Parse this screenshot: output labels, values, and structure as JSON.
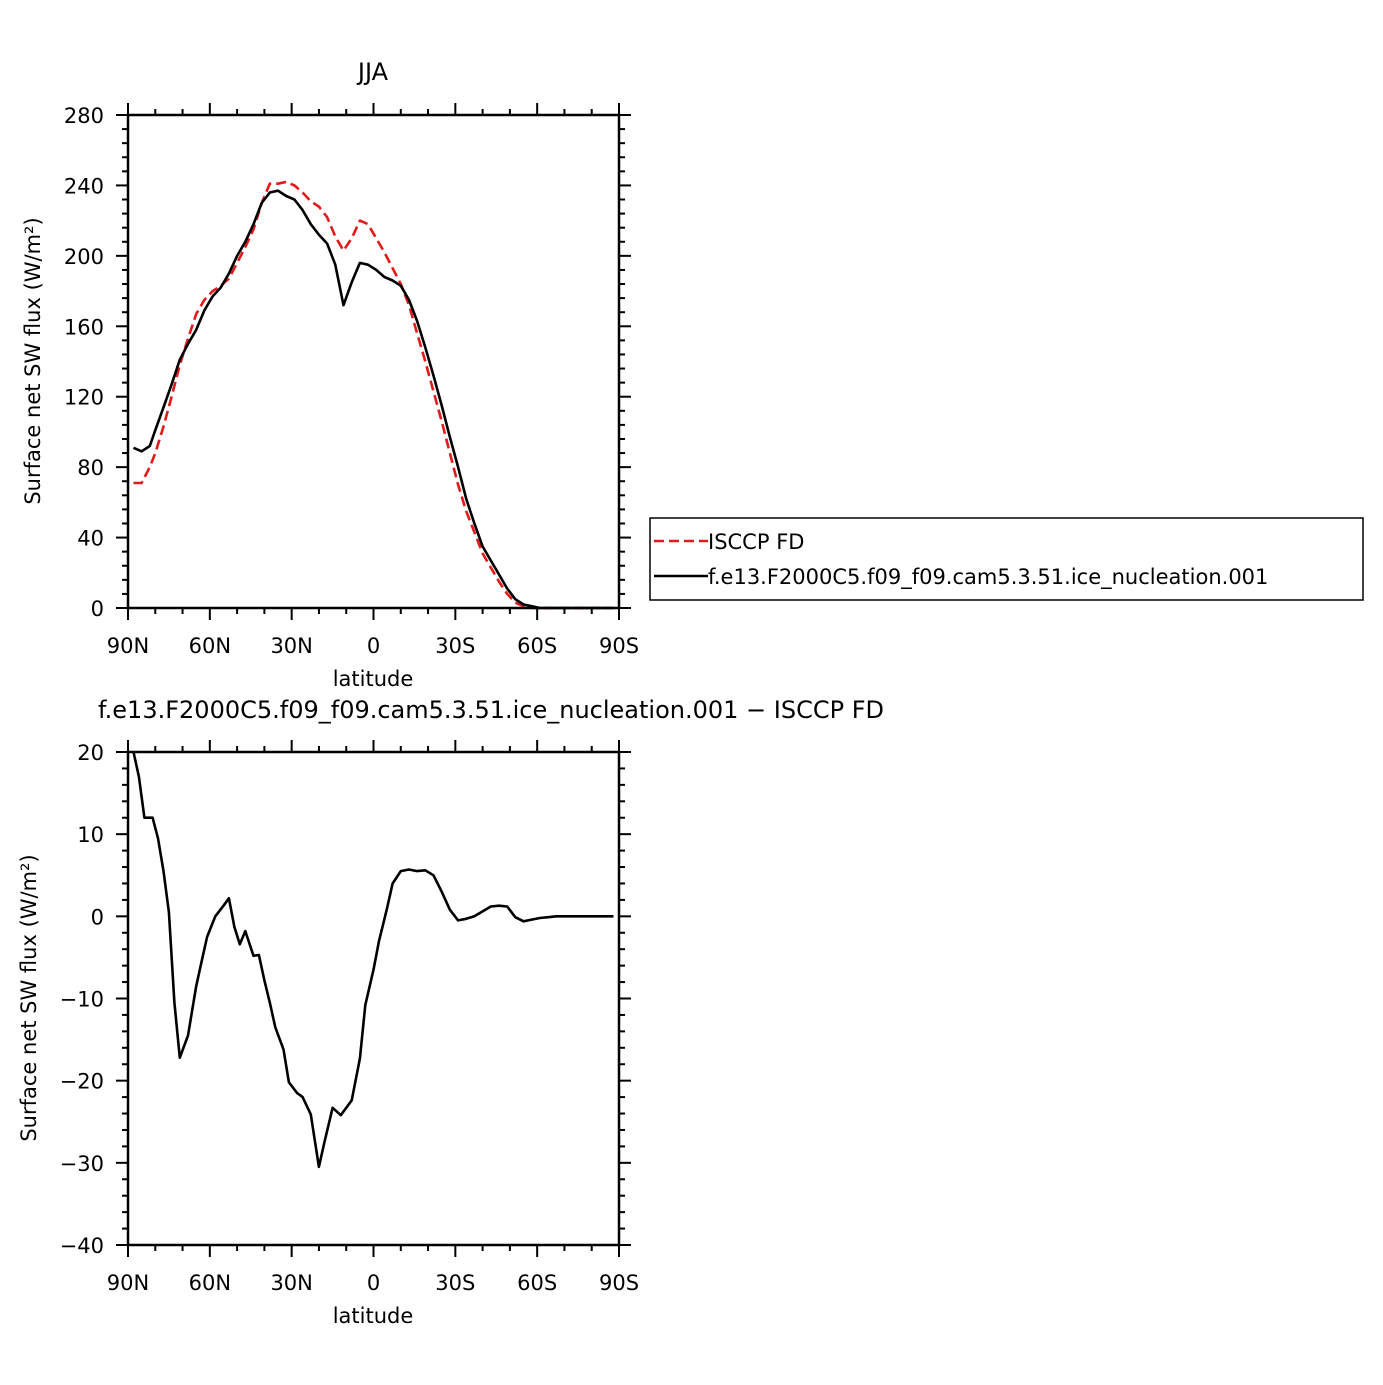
{
  "chart_data": [
    {
      "type": "line",
      "title": "JJA",
      "xlabel": "latitude",
      "ylabel": "Surface net SW flux (W/m²)",
      "xlim": [
        90,
        -90
      ],
      "ylim": [
        0,
        280
      ],
      "x_ticks": [
        90,
        60,
        30,
        0,
        -30,
        -60,
        -90
      ],
      "x_tick_labels": [
        "90N",
        "60N",
        "30N",
        "0",
        "30S",
        "60S",
        "90S"
      ],
      "y_ticks": [
        0,
        40,
        80,
        120,
        160,
        200,
        240,
        280
      ],
      "y_tick_labels": [
        "0",
        "40",
        "80",
        "120",
        "160",
        "200",
        "240",
        "280"
      ],
      "x": [
        88,
        85,
        82,
        80,
        77,
        74,
        71,
        68,
        65,
        62,
        59,
        56,
        53,
        50,
        47,
        44,
        41,
        38,
        35,
        32,
        29,
        26,
        23,
        20,
        17,
        14,
        11,
        8,
        5,
        2,
        -1,
        -4,
        -7,
        -10,
        -13,
        -16,
        -19,
        -22,
        -25,
        -28,
        -31,
        -34,
        -37,
        -40,
        -43,
        -46,
        -49,
        -52,
        -55,
        -58,
        -61,
        -64,
        -67,
        -70,
        -75,
        -80,
        -85,
        -88
      ],
      "series": [
        {
          "name": "ISCCP FD",
          "color": "#e31a1c",
          "dash": "dashed",
          "values": [
            71,
            71,
            80,
            88,
            103,
            120,
            138,
            153,
            167,
            175,
            180,
            183,
            187,
            196,
            205,
            215,
            230,
            241,
            241,
            242,
            240,
            236,
            231,
            228,
            222,
            211,
            203,
            210,
            220,
            218,
            210,
            202,
            193,
            184,
            172,
            156,
            140,
            123,
            106,
            88,
            70,
            55,
            43,
            31,
            23,
            15,
            8,
            3,
            1,
            0,
            0,
            0,
            0,
            0,
            0,
            0,
            0,
            0
          ]
        },
        {
          "name": "f.e13.F2000C5.f09_f09.cam5.3.51.ice_nucleation.001",
          "color": "#000000",
          "dash": "solid",
          "values": [
            91,
            89,
            92,
            101,
            114,
            127,
            141,
            150,
            158,
            169,
            177,
            182,
            190,
            200,
            208,
            218,
            230,
            236,
            237,
            234,
            232,
            226,
            218,
            212,
            207,
            195,
            172,
            185,
            196,
            195,
            192,
            188,
            186,
            183,
            175,
            163,
            148,
            132,
            115,
            97,
            80,
            62,
            48,
            35,
            27,
            19,
            11,
            5,
            2,
            1,
            0,
            0,
            0,
            0,
            0,
            0,
            0,
            0
          ]
        }
      ],
      "legend_placement": "right"
    },
    {
      "type": "line",
      "title": "f.e13.F2000C5.f09_f09.cam5.3.51.ice_nucleation.001 − ISCCP FD",
      "xlabel": "latitude",
      "ylabel": "Surface net SW flux (W/m²)",
      "xlim": [
        90,
        -90
      ],
      "ylim": [
        -40,
        20
      ],
      "x_ticks": [
        90,
        60,
        30,
        0,
        -30,
        -60,
        -90
      ],
      "x_tick_labels": [
        "90N",
        "60N",
        "30N",
        "0",
        "30S",
        "60S",
        "90S"
      ],
      "y_ticks": [
        -40,
        -30,
        -20,
        -10,
        0,
        10,
        20
      ],
      "y_tick_labels": [
        "−40",
        "−30",
        "−20",
        "−10",
        "0",
        "10",
        "20"
      ],
      "x": [
        88,
        86,
        84,
        81,
        79,
        77,
        75,
        73,
        71,
        68,
        65,
        63,
        61,
        58,
        55,
        53,
        51,
        49,
        47,
        44,
        42,
        40,
        38,
        36,
        33,
        31,
        28,
        26,
        23,
        20,
        18,
        15,
        12,
        8,
        5,
        3,
        0,
        -2,
        -5,
        -7,
        -10,
        -13,
        -16,
        -19,
        -22,
        -25,
        -28,
        -31,
        -34,
        -37,
        -40,
        -43,
        -46,
        -49,
        -52,
        -55,
        -58,
        -61,
        -64,
        -67,
        -70,
        -73,
        -76,
        -79,
        -82,
        -85,
        -88
      ],
      "series": [
        {
          "name": "f.e13.F2000C5.f09_f09.cam5.3.51.ice_nucleation.001 − ISCCP FD",
          "color": "#000000",
          "dash": "solid",
          "values": [
            20,
            17,
            12,
            12,
            9.5,
            5.5,
            0.5,
            -10.5,
            -17.2,
            -14.5,
            -8.5,
            -5.5,
            -2.5,
            0,
            1.3,
            2.2,
            -1.3,
            -3.4,
            -1.8,
            -4.8,
            -4.7,
            -7.8,
            -10.5,
            -13.5,
            -16.2,
            -20.2,
            -21.5,
            -22,
            -24.1,
            -30.5,
            -27.5,
            -23.3,
            -24.2,
            -22.4,
            -17.3,
            -10.8,
            -6.5,
            -3,
            1,
            4,
            5.5,
            5.7,
            5.5,
            5.6,
            5,
            3,
            0.8,
            -0.5,
            -0.3,
            0,
            0.6,
            1.2,
            1.3,
            1.2,
            -0.1,
            -0.6,
            -0.4,
            -0.2,
            -0.1,
            0,
            0,
            0,
            0,
            0,
            0,
            0,
            0
          ]
        }
      ],
      "legend_placement": "none"
    }
  ]
}
